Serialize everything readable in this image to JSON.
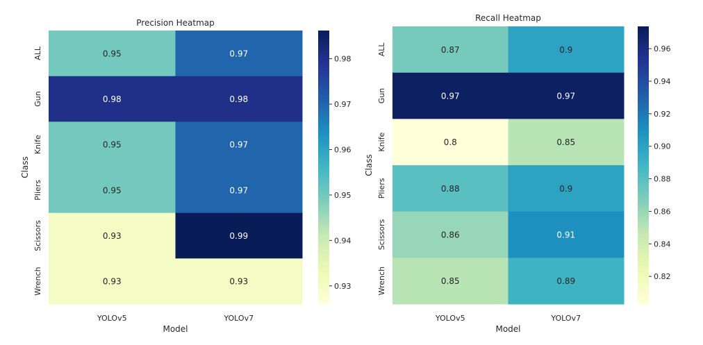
{
  "chart_data": [
    {
      "type": "heatmap",
      "title": "Precision Heatmap",
      "xlabel": "Model",
      "ylabel": "Class",
      "x_categories": [
        "YOLOv5",
        "YOLOv7"
      ],
      "y_categories": [
        "ALL",
        "Gun",
        "Knife",
        "Pliers",
        "Scissors",
        "Wrench"
      ],
      "values": [
        [
          0.95,
          0.97
        ],
        [
          0.98,
          0.98
        ],
        [
          0.95,
          0.97
        ],
        [
          0.95,
          0.97
        ],
        [
          0.93,
          0.99
        ],
        [
          0.93,
          0.93
        ]
      ],
      "annotations": [
        [
          "0.95",
          "0.97"
        ],
        [
          "0.98",
          "0.98"
        ],
        [
          "0.95",
          "0.97"
        ],
        [
          "0.95",
          "0.97"
        ],
        [
          "0.93",
          "0.99"
        ],
        [
          "0.93",
          "0.93"
        ]
      ],
      "colormap": "YlGnBu",
      "color_range": [
        0.926,
        0.9862
      ],
      "colorbar_ticks": [
        "0.93",
        "0.94",
        "0.95",
        "0.96",
        "0.97",
        "0.98"
      ],
      "colorbar_tick_values": [
        0.93,
        0.94,
        0.95,
        0.96,
        0.97,
        0.98
      ]
    },
    {
      "type": "heatmap",
      "title": "Recall Heatmap",
      "xlabel": "Model",
      "ylabel": "Class",
      "x_categories": [
        "YOLOv5",
        "YOLOv7"
      ],
      "y_categories": [
        "ALL",
        "Gun",
        "Knife",
        "Pliers",
        "Scissors",
        "Wrench"
      ],
      "values": [
        [
          0.87,
          0.9
        ],
        [
          0.97,
          0.97
        ],
        [
          0.8,
          0.85
        ],
        [
          0.88,
          0.9
        ],
        [
          0.86,
          0.91
        ],
        [
          0.85,
          0.89
        ]
      ],
      "annotations": [
        [
          "0.87",
          "0.9"
        ],
        [
          "0.97",
          "0.97"
        ],
        [
          "0.8",
          "0.85"
        ],
        [
          "0.88",
          "0.9"
        ],
        [
          "0.86",
          "0.91"
        ],
        [
          "0.85",
          "0.89"
        ]
      ],
      "colormap": "YlGnBu",
      "color_range": [
        0.803,
        0.9737
      ],
      "colorbar_ticks": [
        "0.82",
        "0.84",
        "0.86",
        "0.88",
        "0.90",
        "0.92",
        "0.94",
        "0.96"
      ],
      "colorbar_tick_values": [
        0.82,
        0.84,
        0.86,
        0.88,
        0.9,
        0.92,
        0.94,
        0.96
      ]
    }
  ],
  "colormap_stops": [
    "#ffffd9",
    "#edf8b1",
    "#c7e9b4",
    "#7fcdbb",
    "#41b6c4",
    "#1d91c0",
    "#225ea8",
    "#253494",
    "#081d58"
  ],
  "text_color_dark": "#262626",
  "text_color_light": "#ffffff"
}
